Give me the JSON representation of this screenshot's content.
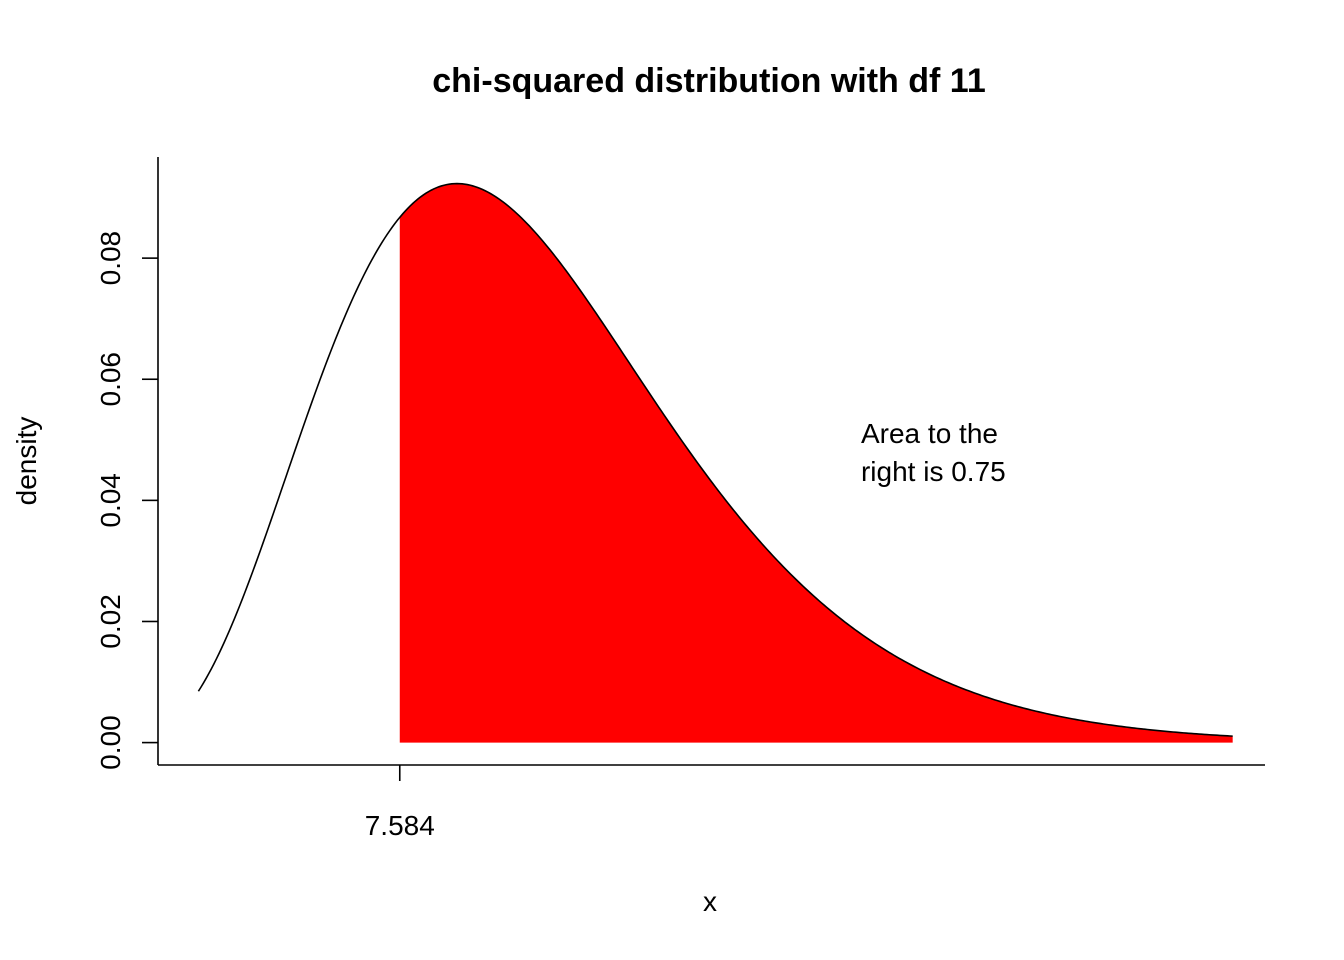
{
  "chart_data": {
    "type": "area",
    "title": "chi-squared distribution with df 11",
    "xlabel": "x",
    "ylabel": "density",
    "distribution": "chi-squared",
    "df": 11,
    "xlim": [
      1.6,
      29.0
    ],
    "ylim": [
      -0.0037,
      0.0967
    ],
    "x_ticks": [
      7.584
    ],
    "x_tick_labels": [
      "7.584"
    ],
    "y_ticks": [
      0.0,
      0.02,
      0.04,
      0.06,
      0.08
    ],
    "y_tick_labels": [
      "0.00",
      "0.02",
      "0.04",
      "0.06",
      "0.08"
    ],
    "curve_range": [
      2.6,
      28.2
    ],
    "shaded_from": 7.584,
    "shaded_to": 28.2,
    "fill_color": "#ff0000",
    "line_color": "#000000",
    "annotation": [
      "Area to the",
      "right is 0.75"
    ],
    "annotation_x": 19.0,
    "annotation_y": 0.048,
    "grid": false,
    "legend": "none"
  }
}
